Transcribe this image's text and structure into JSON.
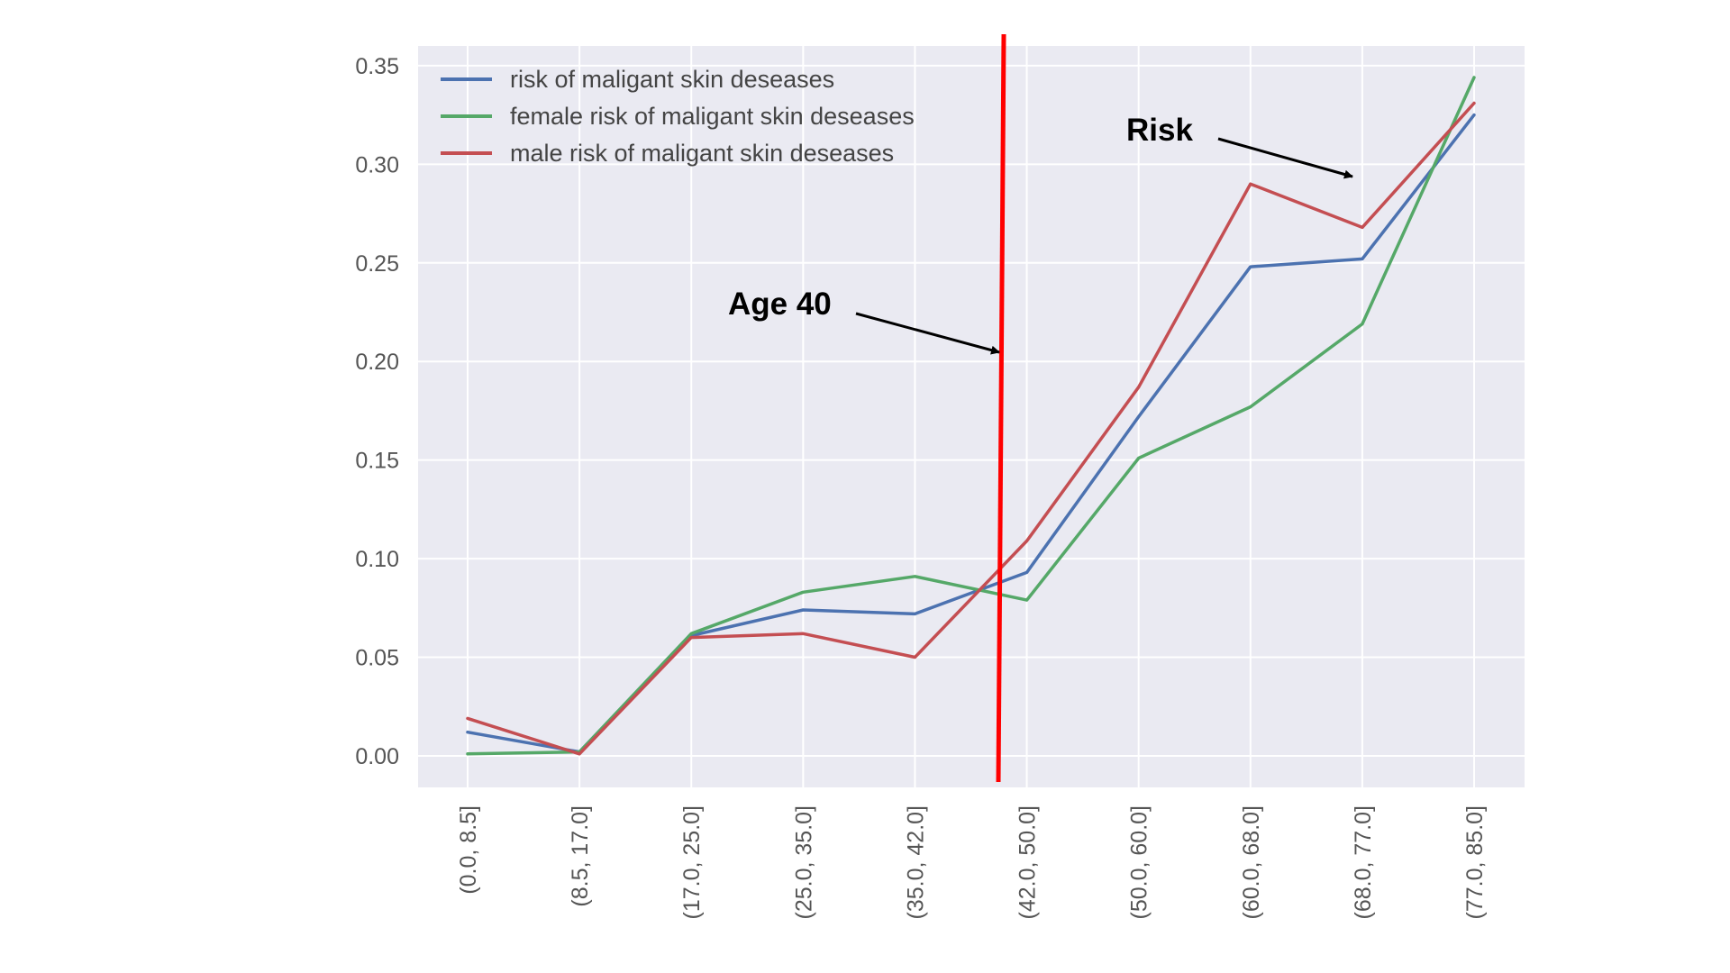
{
  "chart_data": {
    "type": "line",
    "categories": [
      "(0.0, 8.5]",
      "(8.5, 17.0]",
      "(17.0, 25.0]",
      "(25.0, 35.0]",
      "(35.0, 42.0]",
      "(42.0, 50.0]",
      "(50.0, 60.0]",
      "(60.0, 68.0]",
      "(68.0, 77.0]",
      "(77.0, 85.0]"
    ],
    "series": [
      {
        "name": "risk of maligant skin deseases",
        "color": "#4c72b0",
        "values": [
          0.012,
          0.002,
          0.061,
          0.074,
          0.072,
          0.093,
          0.172,
          0.248,
          0.252,
          0.325
        ]
      },
      {
        "name": "female risk of maligant skin deseases",
        "color": "#55a868",
        "values": [
          0.001,
          0.002,
          0.062,
          0.083,
          0.091,
          0.079,
          0.151,
          0.177,
          0.219,
          0.344
        ]
      },
      {
        "name": "male risk of maligant skin deseases",
        "color": "#c44e52",
        "values": [
          0.019,
          0.001,
          0.06,
          0.062,
          0.05,
          0.109,
          0.187,
          0.29,
          0.268,
          0.331
        ]
      }
    ],
    "y_ticks": [
      "0.00",
      "0.05",
      "0.10",
      "0.15",
      "0.20",
      "0.25",
      "0.30",
      "0.35"
    ],
    "ylim": [
      -0.016,
      0.36
    ],
    "grid": true,
    "legend_position": "top-left",
    "background": "#eaeaf2",
    "vertical_marker": {
      "color": "#ff0000",
      "category_position": 4.77
    },
    "annotations": [
      {
        "text": "Age 40",
        "points_to": "vertical_marker"
      },
      {
        "text": "Risk",
        "points_to": "(68.0, 77.0]"
      }
    ],
    "xlabel": "",
    "ylabel": "",
    "title": ""
  }
}
